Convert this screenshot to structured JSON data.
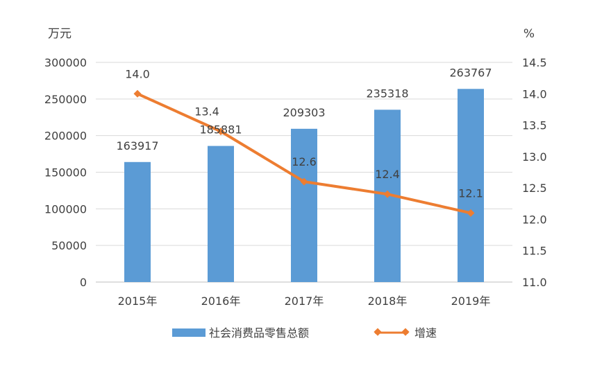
{
  "chart_data": {
    "type": "bar+line",
    "categories": [
      "2015年",
      "2016年",
      "2017年",
      "2018年",
      "2019年"
    ],
    "series": [
      {
        "name": "社会消费品零售总额",
        "type": "bar",
        "axis": "left",
        "color": "#5B9BD5",
        "values": [
          163917,
          185881,
          209303,
          235318,
          263767
        ],
        "labels": [
          "163917",
          "185881",
          "209303",
          "235318",
          "263767"
        ]
      },
      {
        "name": "增速",
        "type": "line",
        "axis": "right",
        "color": "#ED7D31",
        "marker": "diamond",
        "values": [
          14.0,
          13.4,
          12.6,
          12.4,
          12.1
        ],
        "labels": [
          "14.0",
          "13.4",
          "12.6",
          "12.4",
          "12.1"
        ]
      }
    ],
    "left_axis": {
      "unit": "万元",
      "ylim": [
        0,
        300000
      ],
      "ticks": [
        0,
        50000,
        100000,
        150000,
        200000,
        250000,
        300000
      ],
      "tick_labels": [
        "0",
        "50000",
        "100000",
        "150000",
        "200000",
        "250000",
        "300000"
      ]
    },
    "right_axis": {
      "unit": "%",
      "ylim": [
        11.0,
        14.5
      ],
      "ticks": [
        11.0,
        11.5,
        12.0,
        12.5,
        13.0,
        13.5,
        14.0,
        14.5
      ],
      "tick_labels": [
        "11.0",
        "11.5",
        "12.0",
        "12.5",
        "13.0",
        "13.5",
        "14.0",
        "14.5"
      ]
    },
    "grid": true,
    "legend": "bottom"
  }
}
